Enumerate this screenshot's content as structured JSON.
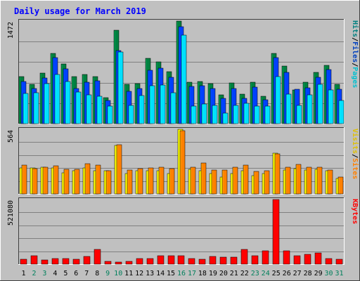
{
  "chart_data": [
    {
      "type": "bar",
      "title": "Daily usage for March 2019",
      "categories": [
        "1",
        "2",
        "3",
        "4",
        "5",
        "6",
        "7",
        "8",
        "9",
        "10",
        "11",
        "12",
        "13",
        "14",
        "15",
        "16",
        "17",
        "18",
        "19",
        "20",
        "21",
        "22",
        "23",
        "24",
        "25",
        "26",
        "27",
        "28",
        "29",
        "30",
        "31"
      ],
      "y_max_label": "1472",
      "ylim": [
        0,
        1472
      ],
      "right_label": [
        "Pages",
        "/",
        "Files",
        "/",
        "Hits"
      ],
      "grid": true,
      "series": [
        {
          "name": "Hits",
          "color": "#008040",
          "values": [
            672,
            560,
            725,
            1010,
            855,
            672,
            705,
            672,
            375,
            1338,
            560,
            570,
            935,
            885,
            745,
            1472,
            590,
            600,
            575,
            410,
            580,
            420,
            590,
            395,
            1010,
            825,
            485,
            590,
            740,
            835,
            560
          ]
        },
        {
          "name": "Files",
          "color": "#0040ff",
          "values": [
            605,
            505,
            660,
            945,
            790,
            505,
            595,
            610,
            330,
            1045,
            460,
            500,
            770,
            800,
            670,
            1390,
            530,
            545,
            505,
            365,
            500,
            365,
            520,
            340,
            950,
            740,
            490,
            515,
            665,
            780,
            495
          ]
        },
        {
          "name": "Pages",
          "color": "#00e0ff",
          "values": [
            435,
            445,
            575,
            705,
            605,
            450,
            415,
            395,
            250,
            1025,
            265,
            400,
            540,
            555,
            440,
            1270,
            255,
            280,
            265,
            150,
            265,
            295,
            255,
            255,
            675,
            420,
            265,
            415,
            560,
            480,
            330
          ]
        }
      ]
    },
    {
      "type": "bar",
      "y_max_label": "564",
      "ylim": [
        0,
        564
      ],
      "right_label": [
        "Sites",
        "/",
        "Visits"
      ],
      "grid": true,
      "series": [
        {
          "name": "Visits",
          "color": "#ffff00",
          "values": [
            225,
            225,
            230,
            225,
            185,
            200,
            225,
            200,
            200,
            425,
            175,
            200,
            200,
            200,
            175,
            564,
            215,
            200,
            175,
            150,
            175,
            200,
            160,
            175,
            355,
            210,
            220,
            210,
            215,
            200,
            135
          ]
        },
        {
          "name": "Sites",
          "color": "#ff8000",
          "values": [
            250,
            220,
            230,
            245,
            215,
            215,
            265,
            250,
            200,
            430,
            210,
            220,
            225,
            230,
            220,
            550,
            230,
            270,
            210,
            210,
            230,
            250,
            195,
            200,
            350,
            235,
            255,
            235,
            230,
            210,
            150
          ]
        }
      ]
    },
    {
      "type": "bar",
      "y_max_label": "521080",
      "ylim": [
        0,
        521080
      ],
      "right_label": [
        "KBytes"
      ],
      "grid": true,
      "series": [
        {
          "name": "KBytes",
          "color": "#ff0000",
          "values": [
            40000,
            70000,
            35000,
            45000,
            45000,
            40000,
            62000,
            120000,
            25000,
            17000,
            22000,
            45000,
            45000,
            70000,
            70000,
            70000,
            47000,
            37000,
            62000,
            58000,
            55000,
            120000,
            70000,
            105000,
            521080,
            110000,
            70000,
            80000,
            88000,
            48000,
            38000
          ]
        }
      ]
    }
  ],
  "x_axis": {
    "weekend_days": [
      "2",
      "3",
      "9",
      "10",
      "16",
      "17",
      "23",
      "24",
      "30",
      "31"
    ],
    "weekday_color": "#000000",
    "weekend_color": "#00805c"
  },
  "colors": {
    "background": "#c0c0c0",
    "plot_bg": "#c0c0c0",
    "title": "#0000ff",
    "pages": "#00c0d0",
    "files": "#0040c0",
    "hits": "#008080",
    "visits": "#e0c000",
    "sites": "#ff8000",
    "kbytes": "#ff0000"
  }
}
